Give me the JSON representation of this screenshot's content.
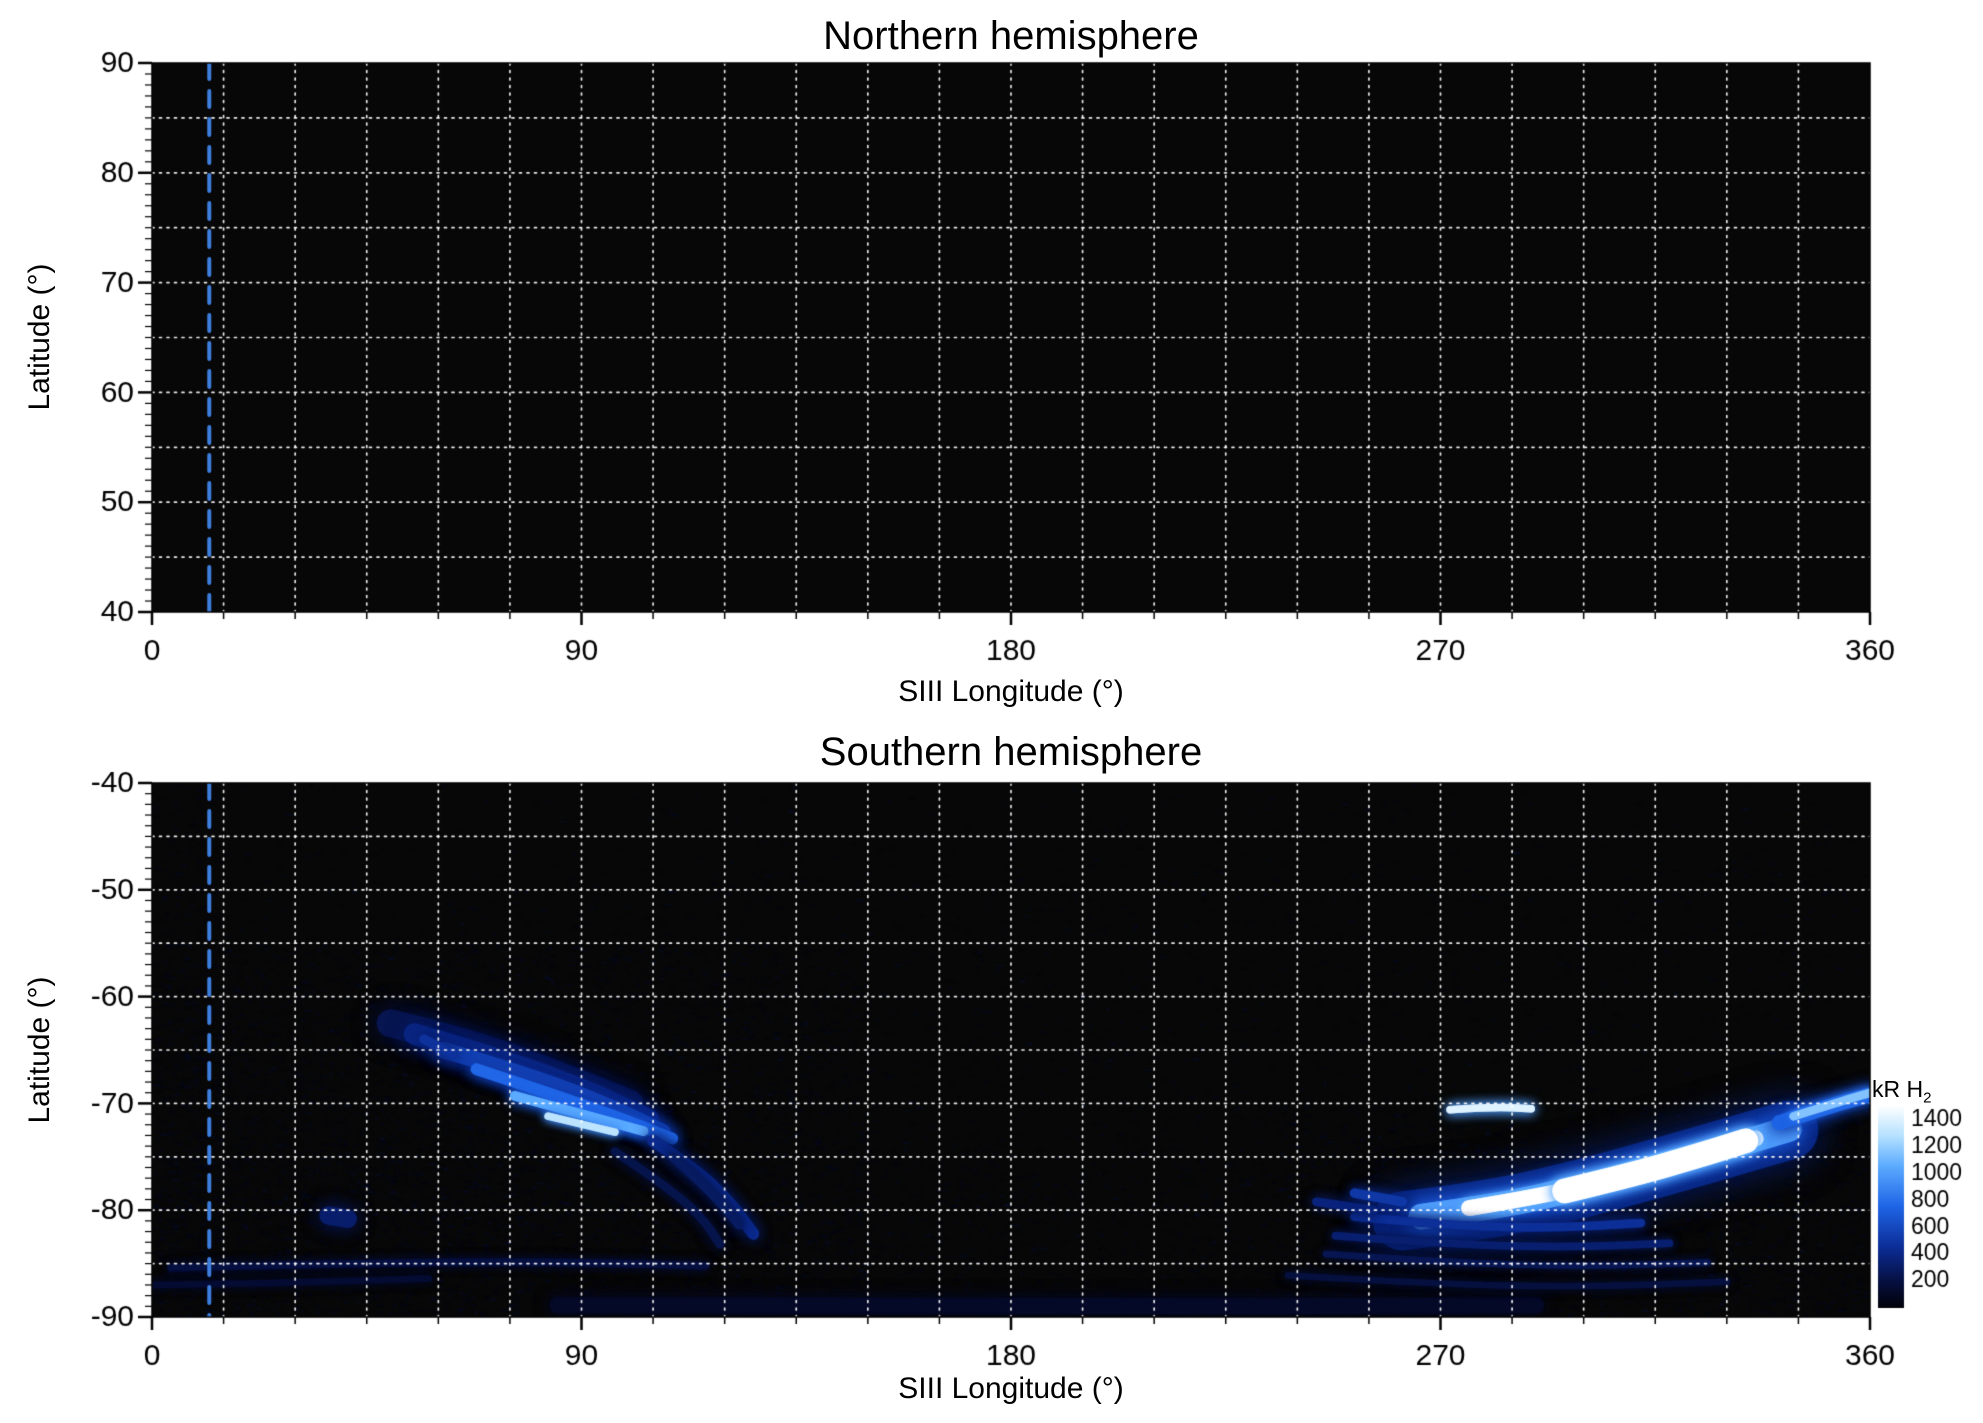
{
  "page": {
    "background": "#ffffff"
  },
  "colorbar": {
    "label_main": "kR H",
    "label_sub": "2",
    "ticks": [
      1400,
      1200,
      1000,
      800,
      600,
      400,
      200
    ],
    "vmin": 0,
    "vmax": 1500
  },
  "colormap": [
    [
      0.0,
      [
        2,
        2,
        8
      ]
    ],
    [
      0.13,
      [
        6,
        16,
        64
      ]
    ],
    [
      0.3,
      [
        12,
        45,
        150
      ]
    ],
    [
      0.5,
      [
        30,
        100,
        230
      ]
    ],
    [
      0.7,
      [
        90,
        170,
        255
      ]
    ],
    [
      0.85,
      [
        180,
        225,
        255
      ]
    ],
    [
      1.0,
      [
        255,
        255,
        255
      ]
    ]
  ],
  "chart_data": [
    {
      "type": "heatmap",
      "title": "Northern hemisphere",
      "xlabel": "SIII Longitude (°)",
      "ylabel": "Latitude (°)",
      "xlim": [
        0,
        360
      ],
      "ylim": [
        40,
        90
      ],
      "xticks": [
        0,
        90,
        180,
        270,
        360
      ],
      "yticks": [
        90,
        80,
        70,
        60,
        50,
        40
      ],
      "grid": {
        "x_step": 15,
        "y_step": 5,
        "style": "dotted",
        "color": "#ffffff"
      },
      "background": "#070707",
      "reference_line": {
        "x": 12,
        "color": "#3e7ede",
        "style": "dashed"
      },
      "features": [],
      "noise": null
    },
    {
      "type": "heatmap",
      "title": "Southern hemisphere",
      "xlabel": "SIII Longitude (°)",
      "ylabel": "Latitude (°)",
      "xlim": [
        0,
        360
      ],
      "ylim": [
        -90,
        -40
      ],
      "xticks": [
        0,
        90,
        180,
        270,
        360
      ],
      "yticks": [
        -40,
        -50,
        -60,
        -70,
        -80,
        -90
      ],
      "grid": {
        "x_step": 15,
        "y_step": 5,
        "style": "dotted",
        "color": "#ffffff"
      },
      "background": "#070707",
      "reference_line": {
        "x": 12,
        "color": "#3e7ede",
        "style": "dashed"
      },
      "noise": {
        "seed": 20,
        "candidates": 60000
      },
      "features": [
        {
          "points": [
            [
              50,
              -62.5
            ],
            [
              68,
              -64.5
            ],
            [
              86,
              -67.5
            ],
            [
              100,
              -70
            ]
          ],
          "width_deg": 2.6,
          "kR": 260,
          "blur": 12,
          "alpha": 0.75
        },
        {
          "points": [
            [
              55,
              -63.5
            ],
            [
              74,
              -66
            ],
            [
              92,
              -69
            ],
            [
              104,
              -71.5
            ]
          ],
          "width_deg": 2.0,
          "kR": 400,
          "blur": 9,
          "alpha": 0.9
        },
        {
          "points": [
            [
              61,
              -65
            ],
            [
              80,
              -67.5
            ],
            [
              97,
              -70.5
            ],
            [
              107,
              -72.7
            ]
          ],
          "width_deg": 1.5,
          "kR": 560,
          "blur": 8,
          "alpha": 1
        },
        {
          "points": [
            [
              68,
              -66.8
            ],
            [
              85,
              -69.3
            ],
            [
              100,
              -71.7
            ],
            [
              109,
              -73.3
            ]
          ],
          "width_deg": 1.1,
          "kR": 760,
          "blur": 7,
          "alpha": 1
        },
        {
          "points": [
            [
              76,
              -69.3
            ],
            [
              90,
              -71
            ],
            [
              103,
              -72.6
            ]
          ],
          "width_deg": 0.9,
          "kR": 1050,
          "blur": 6,
          "alpha": 1
        },
        {
          "points": [
            [
              83,
              -71.2
            ],
            [
              97,
              -72.7
            ]
          ],
          "width_deg": 0.7,
          "kR": 1300,
          "blur": 5,
          "alpha": 1
        },
        {
          "points": [
            [
              57,
              -64
            ],
            [
              63,
              -65.4
            ]
          ],
          "width_deg": 0.9,
          "kR": 480,
          "blur": 7,
          "alpha": 0.9
        },
        {
          "points": [
            [
              105,
              -73.5
            ],
            [
              114,
              -76.2
            ],
            [
              121,
              -79.2
            ],
            [
              126,
              -82.2
            ]
          ],
          "width_deg": 1.1,
          "kR": 420,
          "blur": 7,
          "alpha": 0.95
        },
        {
          "points": [
            [
              109,
              -75
            ],
            [
              117,
              -78.2
            ],
            [
              123,
              -81.4
            ]
          ],
          "width_deg": 0.8,
          "kR": 300,
          "blur": 6,
          "alpha": 0.9
        },
        {
          "points": [
            [
              97,
              -74.5
            ],
            [
              107,
              -77.5
            ],
            [
              115,
              -80.5
            ],
            [
              119,
              -83.2
            ]
          ],
          "width_deg": 0.8,
          "kR": 240,
          "blur": 6,
          "alpha": 0.85
        },
        {
          "points": [
            [
              37,
              -80.5
            ],
            [
              41,
              -80.8
            ]
          ],
          "width_deg": 1.7,
          "kR": 330,
          "blur": 9,
          "alpha": 0.9
        },
        {
          "points": [
            [
              4,
              -85.4
            ],
            [
              40,
              -85
            ],
            [
              80,
              -84.8
            ],
            [
              116,
              -85.2
            ]
          ],
          "width_deg": 0.7,
          "kR": 200,
          "blur": 5,
          "alpha": 0.85
        },
        {
          "points": [
            [
              0,
              -87
            ],
            [
              28,
              -86.8
            ],
            [
              58,
              -86.4
            ]
          ],
          "width_deg": 0.6,
          "kR": 160,
          "blur": 5,
          "alpha": 0.8
        },
        {
          "points": [
            [
              85,
              -88.9
            ],
            [
              180,
              -89.1
            ],
            [
              290,
              -88.9
            ]
          ],
          "width_deg": 1.5,
          "kR": 110,
          "blur": 8,
          "alpha": 0.9
        },
        {
          "points": [
            [
              272,
              -70.6
            ],
            [
              281,
              -70.3
            ],
            [
              289,
              -70.5
            ]
          ],
          "width_deg": 0.7,
          "kR": 1400,
          "blur": 6,
          "alpha": 1
        },
        {
          "points": [
            [
              262,
              -81
            ],
            [
              280,
              -80
            ],
            [
              298,
              -78.2
            ],
            [
              316,
              -76
            ],
            [
              333,
              -73.8
            ],
            [
              343,
              -72.5
            ]
          ],
          "width_deg": 5.5,
          "kR": 450,
          "blur": 18,
          "alpha": 0.6
        },
        {
          "points": [
            [
              266,
              -80.6
            ],
            [
              283,
              -79.6
            ],
            [
              300,
              -77.8
            ],
            [
              317,
              -75.7
            ],
            [
              334,
              -73.6
            ],
            [
              343,
              -72.4
            ]
          ],
          "width_deg": 2.4,
          "kR": 1000,
          "blur": 9,
          "alpha": 0.95
        },
        {
          "points": [
            [
              276,
              -79.8
            ],
            [
              292,
              -78.6
            ],
            [
              308,
              -76.9
            ],
            [
              323,
              -75
            ],
            [
              336,
              -73.3
            ]
          ],
          "width_deg": 1.5,
          "kR": 1500,
          "blur": 5,
          "alpha": 1
        },
        {
          "points": [
            [
              296,
              -78.2
            ],
            [
              310,
              -76.7
            ],
            [
              324,
              -74.9
            ],
            [
              334,
              -73.5
            ]
          ],
          "width_deg": 2.3,
          "kR": 1500,
          "blur": 6,
          "alpha": 1
        },
        {
          "points": [
            [
              341,
              -71.8
            ],
            [
              351,
              -70.3
            ],
            [
              360,
              -69.2
            ]
          ],
          "width_deg": 1.4,
          "kR": 750,
          "blur": 8,
          "alpha": 0.95
        },
        {
          "points": [
            [
              344,
              -71.2
            ],
            [
              354,
              -69.8
            ],
            [
              360,
              -69
            ]
          ],
          "width_deg": 0.8,
          "kR": 1150,
          "blur": 5,
          "alpha": 1
        },
        {
          "points": [
            [
              252,
              -80.6
            ],
            [
              270,
              -81.4
            ],
            [
              292,
              -81.7
            ],
            [
              312,
              -81.2
            ]
          ],
          "width_deg": 0.8,
          "kR": 460,
          "blur": 6,
          "alpha": 0.95
        },
        {
          "points": [
            [
              248,
              -82.4
            ],
            [
              268,
              -83.1
            ],
            [
              295,
              -83.5
            ],
            [
              318,
              -83.1
            ]
          ],
          "width_deg": 0.7,
          "kR": 340,
          "blur": 5,
          "alpha": 0.9
        },
        {
          "points": [
            [
              246,
              -84.1
            ],
            [
              272,
              -84.9
            ],
            [
              300,
              -85.3
            ],
            [
              326,
              -84.9
            ]
          ],
          "width_deg": 0.6,
          "kR": 260,
          "blur": 5,
          "alpha": 0.85
        },
        {
          "points": [
            [
              238,
              -86.1
            ],
            [
              268,
              -86.9
            ],
            [
              300,
              -87.2
            ],
            [
              330,
              -86.7
            ]
          ],
          "width_deg": 0.6,
          "kR": 200,
          "blur": 5,
          "alpha": 0.8
        },
        {
          "points": [
            [
              244,
              -79.2
            ],
            [
              256,
              -80
            ]
          ],
          "width_deg": 0.8,
          "kR": 380,
          "blur": 6,
          "alpha": 0.9
        },
        {
          "points": [
            [
              252,
              -78.4
            ],
            [
              262,
              -79.2
            ]
          ],
          "width_deg": 0.9,
          "kR": 520,
          "blur": 6,
          "alpha": 0.9
        }
      ]
    }
  ]
}
